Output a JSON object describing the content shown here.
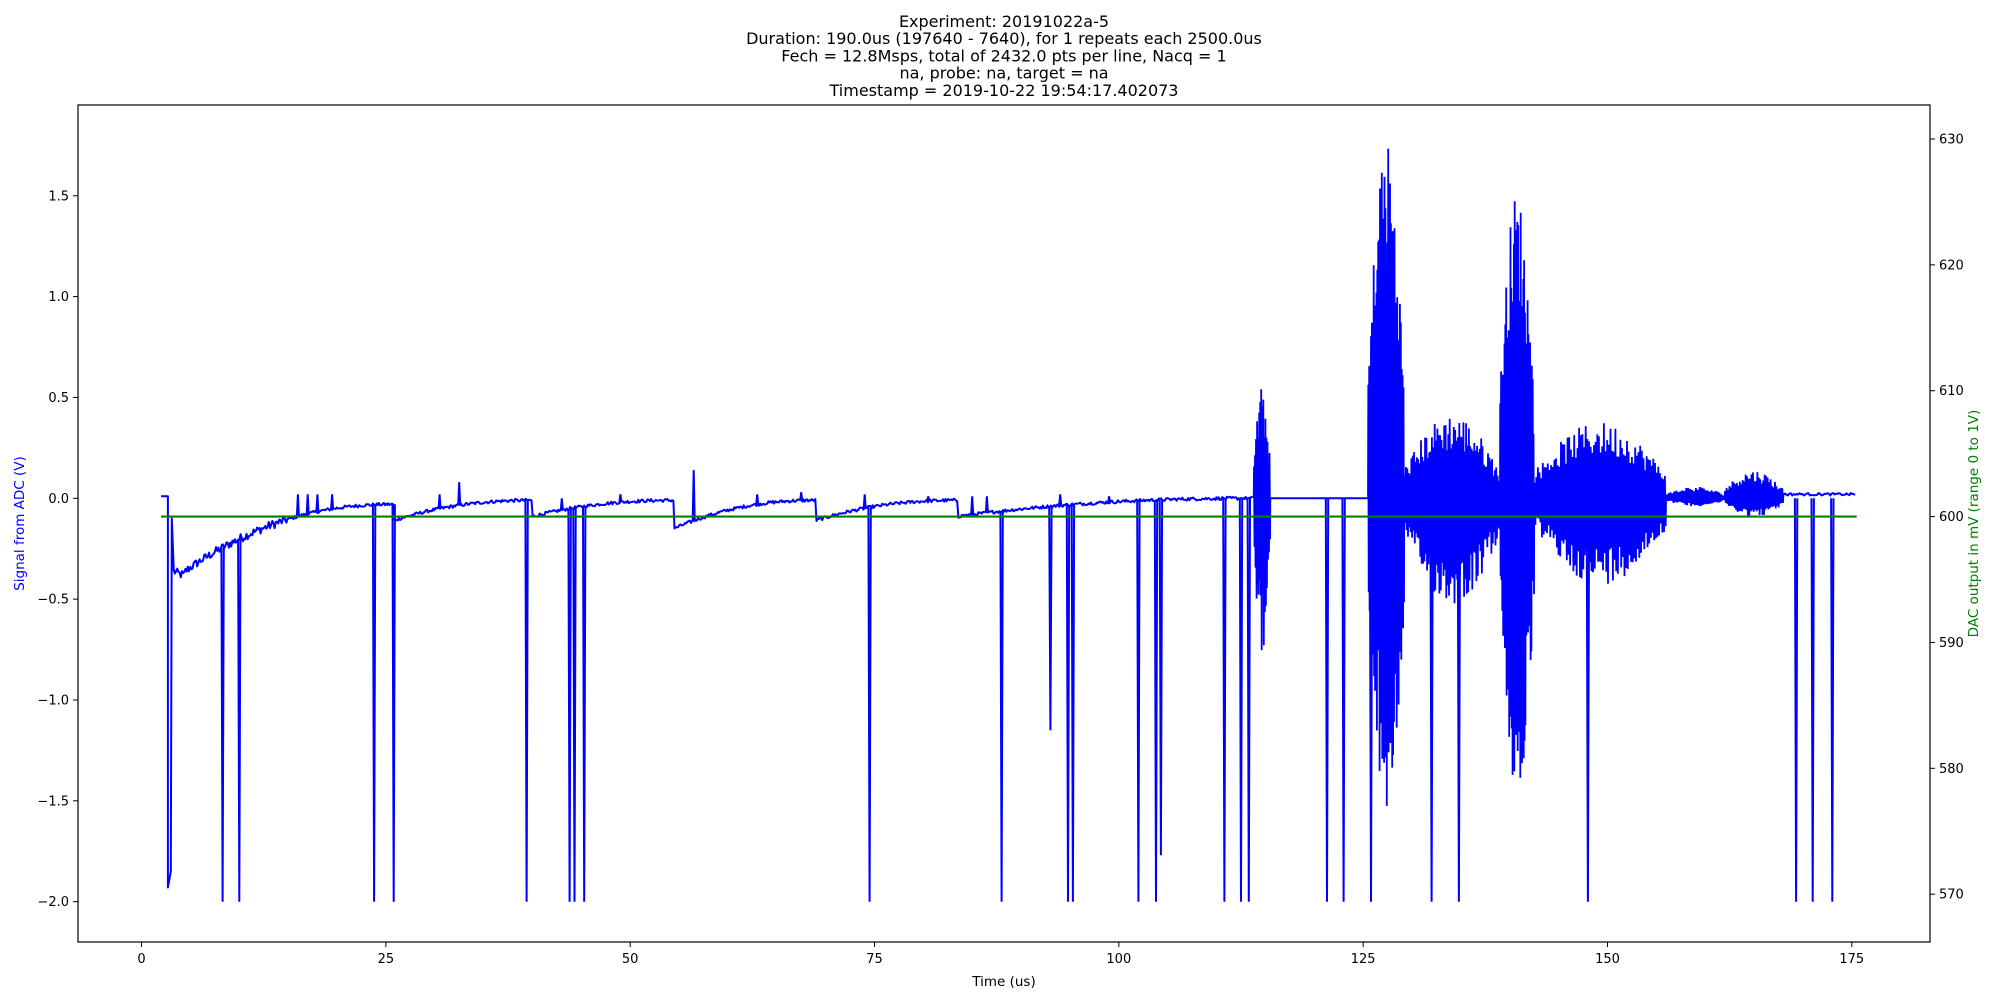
{
  "chart_data": {
    "type": "line",
    "title_lines": [
      "Experiment: 20191022a-5",
      "Duration: 190.0us (197640 - 7640), for 1 repeats each 2500.0us",
      "Fech = 12.8Msps, total of 2432.0 pts per line, Nacq = 1",
      "na, probe: na, target = na",
      "Timestamp = 2019-10-22 19:54:17.402073"
    ],
    "xlabel": "Time (us)",
    "ylabel": "Signal from ADC (V)",
    "y2label": "DAC output in mV (range 0 to 1V)",
    "xlim": [
      -6.5,
      183
    ],
    "ylim": [
      -2.2,
      1.95
    ],
    "y2lim": [
      566.2,
      632.7
    ],
    "x_ticks": [
      0,
      25,
      50,
      75,
      100,
      125,
      150,
      175
    ],
    "x_tick_labels": [
      "0",
      "25",
      "50",
      "75",
      "100",
      "125",
      "150",
      "175"
    ],
    "y_ticks": [
      1.5,
      1.0,
      0.5,
      0.0,
      -0.5,
      -1.0,
      -1.5,
      -2.0
    ],
    "y_tick_labels": [
      "1.5",
      "1.0",
      "0.5",
      "0.0",
      "−0.5",
      "−1.0",
      "−1.5",
      "−2.0"
    ],
    "y2_ticks": [
      630,
      620,
      610,
      600,
      590,
      580,
      570
    ],
    "y2_tick_labels": [
      "630",
      "620",
      "610",
      "600",
      "590",
      "580",
      "570"
    ],
    "grid": false,
    "series": [
      {
        "axis": "left",
        "color": "#0000ff",
        "x_start": 2.0,
        "x_end": 175.5,
        "baseline_segments": [
          {
            "x0": 2.0,
            "x1": 2.7,
            "y0": 0.01,
            "y1": 0.01
          },
          {
            "x0": 3.3,
            "x1": 4.5,
            "y0": -0.36,
            "y1": -0.38
          },
          {
            "x0": 4.5,
            "x1": 25.8,
            "y0": -0.36,
            "y1": -0.03
          },
          {
            "x0": 25.8,
            "x1": 40.0,
            "y0": -0.11,
            "y1": -0.01
          },
          {
            "x0": 40.0,
            "x1": 54.5,
            "y0": -0.09,
            "y1": -0.01
          },
          {
            "x0": 54.5,
            "x1": 69.0,
            "y0": -0.15,
            "y1": -0.01
          },
          {
            "x0": 69.0,
            "x1": 83.5,
            "y0": -0.11,
            "y1": -0.01
          },
          {
            "x0": 83.5,
            "x1": 114.0,
            "y0": -0.09,
            "y1": 0.0
          },
          {
            "x0": 114.0,
            "x1": 175.5,
            "y0": 0.0,
            "y1": 0.02
          }
        ],
        "initial_dip": {
          "x": 2.7,
          "y": -1.93
        },
        "spikes_down": [
          {
            "x": 8.3,
            "y": -2.0
          },
          {
            "x": 10.0,
            "y": -2.0
          },
          {
            "x": 23.8,
            "y": -2.0
          },
          {
            "x": 25.8,
            "y": -2.0
          },
          {
            "x": 39.4,
            "x2": 39.4,
            "y": -2.0
          },
          {
            "x": 43.8,
            "y": -2.0
          },
          {
            "x": 44.3,
            "y": -2.0
          },
          {
            "x": 45.3,
            "y": -2.0
          },
          {
            "x": 74.5,
            "y": -2.0
          },
          {
            "x": 88.0,
            "y": -2.0
          },
          {
            "x": 93.0,
            "y": -1.15
          },
          {
            "x": 94.8,
            "y": -2.0
          },
          {
            "x": 95.3,
            "y": -2.0
          },
          {
            "x": 102.0,
            "y": -2.0
          },
          {
            "x": 103.8,
            "y": -2.0
          },
          {
            "x": 104.3,
            "y": -1.77
          },
          {
            "x": 110.8,
            "y": -2.0
          },
          {
            "x": 112.5,
            "y": -2.0
          },
          {
            "x": 113.3,
            "y": -2.0
          },
          {
            "x": 121.3,
            "y": -2.0
          },
          {
            "x": 123.0,
            "y": -2.0
          },
          {
            "x": 125.8,
            "y": -2.0
          },
          {
            "x": 132.0,
            "y": -2.0
          },
          {
            "x": 134.8,
            "y": -2.0
          },
          {
            "x": 148.0,
            "y": -2.0
          },
          {
            "x": 169.3,
            "y": -2.0
          },
          {
            "x": 171.0,
            "y": -2.0
          },
          {
            "x": 173.0,
            "y": -2.0
          }
        ],
        "spikes_up": [
          {
            "x": 16.0,
            "y": 0.02
          },
          {
            "x": 17.0,
            "y": 0.02
          },
          {
            "x": 18.0,
            "y": 0.02
          },
          {
            "x": 19.5,
            "y": 0.02
          },
          {
            "x": 30.5,
            "y": 0.02
          },
          {
            "x": 32.5,
            "y": 0.08
          },
          {
            "x": 43.0,
            "y": 0.0
          },
          {
            "x": 49.0,
            "y": 0.02
          },
          {
            "x": 56.5,
            "y": 0.14
          },
          {
            "x": 63.0,
            "y": 0.02
          },
          {
            "x": 67.5,
            "y": 0.03
          },
          {
            "x": 74.0,
            "y": 0.02
          },
          {
            "x": 80.5,
            "y": 0.01
          },
          {
            "x": 85.0,
            "y": 0.01
          },
          {
            "x": 86.5,
            "y": 0.01
          },
          {
            "x": 94.0,
            "y": 0.02
          },
          {
            "x": 99.0,
            "y": 0.01
          }
        ],
        "bursts": [
          {
            "x0": 113.8,
            "x1": 115.5,
            "amp_pos": 0.55,
            "amp_neg": -0.77,
            "count": 16
          },
          {
            "x0": 125.5,
            "x1": 129.2,
            "amp_pos": 1.8,
            "amp_neg": -1.58,
            "count": 40
          },
          {
            "x0": 129.2,
            "x1": 139.0,
            "amp_pos": 0.42,
            "amp_neg": -0.53,
            "count": 70
          },
          {
            "x0": 139.0,
            "x1": 142.5,
            "amp_pos": 1.53,
            "amp_neg": -1.51,
            "count": 40
          },
          {
            "x0": 142.5,
            "x1": 156.0,
            "amp_pos": 0.38,
            "amp_neg": -0.43,
            "count": 80
          },
          {
            "x0": 156.0,
            "x1": 162.0,
            "amp_pos": 0.06,
            "amp_neg": -0.04,
            "count": 30
          },
          {
            "x0": 162.0,
            "x1": 168.0,
            "amp_pos": 0.14,
            "amp_neg": -0.09,
            "count": 40
          }
        ]
      },
      {
        "axis": "right",
        "color": "#008000",
        "x": [
          2.0,
          175.5
        ],
        "y": [
          600.0,
          600.0
        ]
      }
    ]
  }
}
